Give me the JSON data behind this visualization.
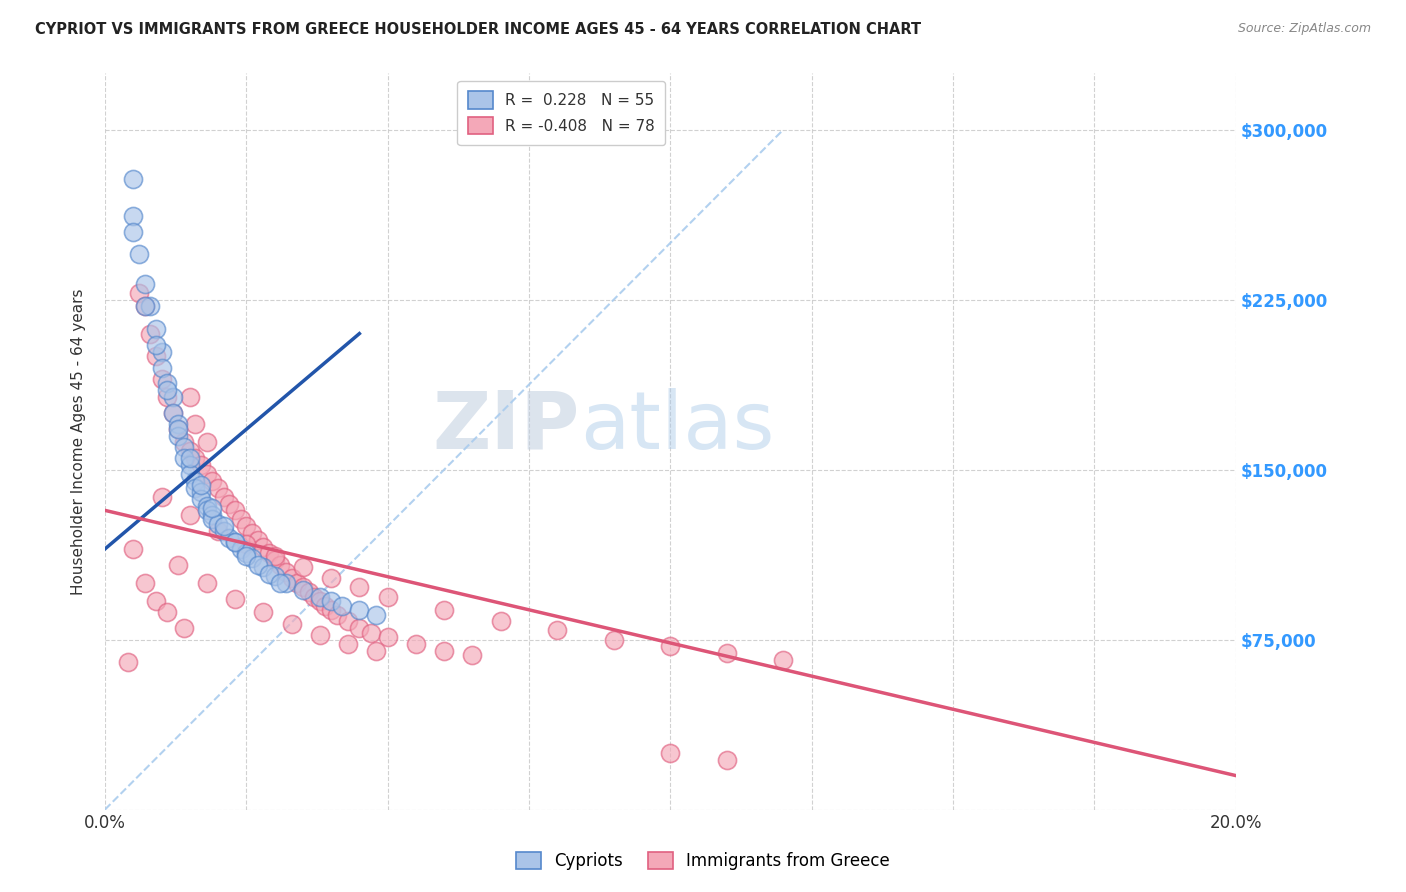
{
  "title": "CYPRIOT VS IMMIGRANTS FROM GREECE HOUSEHOLDER INCOME AGES 45 - 64 YEARS CORRELATION CHART",
  "source": "Source: ZipAtlas.com",
  "ylabel": "Householder Income Ages 45 - 64 years",
  "xmin": 0.0,
  "xmax": 0.2,
  "ymin": 0,
  "ymax": 325000,
  "yticks": [
    0,
    75000,
    150000,
    225000,
    300000
  ],
  "ytick_labels": [
    "",
    "$75,000",
    "$150,000",
    "$225,000",
    "$300,000"
  ],
  "xticks": [
    0.0,
    0.025,
    0.05,
    0.075,
    0.1,
    0.125,
    0.15,
    0.175,
    0.2
  ],
  "blue_color": "#aac4e8",
  "pink_color": "#f4a8b8",
  "blue_edge_color": "#5588cc",
  "pink_edge_color": "#e06080",
  "blue_line_color": "#2255aa",
  "pink_line_color": "#dd5577",
  "ref_line_color": "#aaccee",
  "watermark_color": "#d0dff0",
  "cypriot_x": [
    0.005,
    0.005,
    0.006,
    0.007,
    0.008,
    0.009,
    0.01,
    0.01,
    0.011,
    0.012,
    0.012,
    0.013,
    0.013,
    0.014,
    0.014,
    0.015,
    0.015,
    0.016,
    0.016,
    0.017,
    0.017,
    0.018,
    0.018,
    0.019,
    0.019,
    0.02,
    0.021,
    0.022,
    0.023,
    0.024,
    0.025,
    0.026,
    0.028,
    0.03,
    0.032,
    0.035,
    0.038,
    0.04,
    0.042,
    0.045,
    0.048,
    0.005,
    0.007,
    0.009,
    0.011,
    0.013,
    0.015,
    0.017,
    0.019,
    0.021,
    0.023,
    0.025,
    0.027,
    0.029,
    0.031
  ],
  "cypriot_y": [
    278000,
    262000,
    245000,
    232000,
    222000,
    212000,
    202000,
    195000,
    188000,
    182000,
    175000,
    170000,
    165000,
    160000,
    155000,
    152000,
    148000,
    145000,
    142000,
    140000,
    137000,
    134000,
    132000,
    130000,
    128000,
    126000,
    123000,
    120000,
    118000,
    115000,
    113000,
    111000,
    107000,
    103000,
    100000,
    97000,
    94000,
    92000,
    90000,
    88000,
    86000,
    255000,
    222000,
    205000,
    185000,
    168000,
    155000,
    143000,
    133000,
    125000,
    118000,
    112000,
    108000,
    104000,
    100000
  ],
  "greece_x": [
    0.004,
    0.006,
    0.007,
    0.008,
    0.009,
    0.01,
    0.011,
    0.012,
    0.013,
    0.014,
    0.015,
    0.015,
    0.016,
    0.016,
    0.017,
    0.018,
    0.018,
    0.019,
    0.02,
    0.021,
    0.022,
    0.023,
    0.024,
    0.025,
    0.026,
    0.027,
    0.028,
    0.029,
    0.03,
    0.031,
    0.032,
    0.033,
    0.034,
    0.035,
    0.036,
    0.037,
    0.038,
    0.039,
    0.04,
    0.041,
    0.043,
    0.045,
    0.047,
    0.05,
    0.055,
    0.06,
    0.065,
    0.01,
    0.015,
    0.02,
    0.025,
    0.03,
    0.035,
    0.04,
    0.045,
    0.05,
    0.06,
    0.07,
    0.08,
    0.09,
    0.1,
    0.11,
    0.12,
    0.013,
    0.018,
    0.023,
    0.028,
    0.033,
    0.038,
    0.043,
    0.048,
    0.1,
    0.11,
    0.005,
    0.007,
    0.009,
    0.011,
    0.014
  ],
  "greece_y": [
    65000,
    228000,
    222000,
    210000,
    200000,
    190000,
    182000,
    175000,
    168000,
    162000,
    158000,
    182000,
    155000,
    170000,
    152000,
    148000,
    162000,
    145000,
    142000,
    138000,
    135000,
    132000,
    128000,
    125000,
    122000,
    119000,
    116000,
    113000,
    110000,
    108000,
    105000,
    102000,
    100000,
    98000,
    96000,
    94000,
    92000,
    90000,
    88000,
    86000,
    83000,
    80000,
    78000,
    76000,
    73000,
    70000,
    68000,
    138000,
    130000,
    123000,
    117000,
    112000,
    107000,
    102000,
    98000,
    94000,
    88000,
    83000,
    79000,
    75000,
    72000,
    69000,
    66000,
    108000,
    100000,
    93000,
    87000,
    82000,
    77000,
    73000,
    70000,
    25000,
    22000,
    115000,
    100000,
    92000,
    87000,
    80000
  ]
}
